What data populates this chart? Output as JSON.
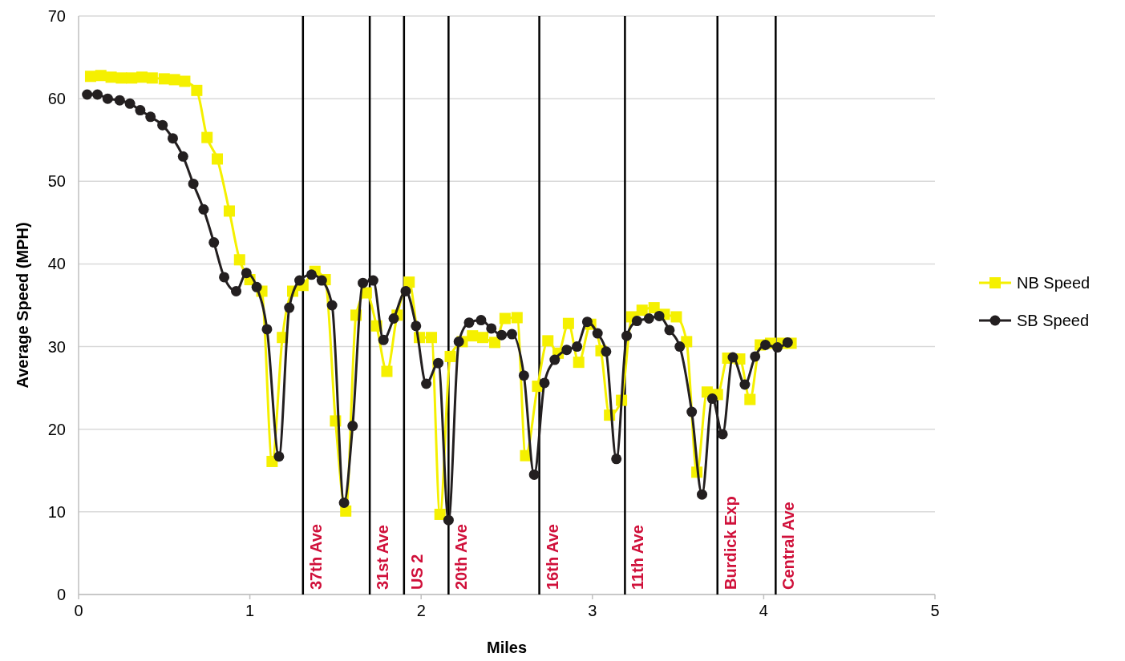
{
  "chart_data": {
    "type": "line",
    "xlabel": "Miles",
    "ylabel": "Average Speed (MPH)",
    "xlim": [
      0,
      5
    ],
    "xticks": [
      0,
      1,
      2,
      3,
      4,
      5
    ],
    "ylim": [
      0,
      70
    ],
    "yticks": [
      0,
      10,
      20,
      30,
      40,
      50,
      60,
      70
    ],
    "grid": "y",
    "legend": "right",
    "series": [
      {
        "name": "NB Speed",
        "color": "#f5f000",
        "marker": "square",
        "x": [
          0.07,
          0.13,
          0.19,
          0.25,
          0.31,
          0.37,
          0.43,
          0.5,
          0.56,
          0.62,
          0.69,
          0.75,
          0.81,
          0.88,
          0.94,
          1.0,
          1.07,
          1.13,
          1.19,
          1.25,
          1.31,
          1.38,
          1.44,
          1.5,
          1.56,
          1.62,
          1.68,
          1.74,
          1.8,
          1.86,
          1.93,
          1.99,
          2.06,
          2.11,
          2.17,
          2.24,
          2.3,
          2.36,
          2.43,
          2.49,
          2.56,
          2.61,
          2.68,
          2.74,
          2.8,
          2.86,
          2.92,
          2.99,
          3.05,
          3.1,
          3.17,
          3.23,
          3.29,
          3.36,
          3.42,
          3.49,
          3.55,
          3.61,
          3.67,
          3.73,
          3.79,
          3.86,
          3.92,
          3.98,
          4.04,
          4.11,
          4.16
        ],
        "values": [
          62.7,
          62.8,
          62.6,
          62.5,
          62.5,
          62.6,
          62.5,
          62.4,
          62.3,
          62.1,
          61,
          55.3,
          52.7,
          46.4,
          40.5,
          38.1,
          36.7,
          16.1,
          31.1,
          36.7,
          37.4,
          39.1,
          38.1,
          21,
          10.1,
          33.8,
          36.5,
          32.5,
          27,
          33.8,
          37.8,
          31.1,
          31.1,
          9.7,
          28.8,
          30.6,
          31.3,
          31.1,
          30.5,
          33.4,
          33.5,
          16.8,
          25.2,
          30.7,
          29.2,
          32.8,
          28.1,
          32.7,
          29.5,
          21.7,
          23.5,
          33.6,
          34.4,
          34.7,
          33.9,
          33.6,
          30.6,
          14.8,
          24.5,
          24.2,
          28.6,
          28.5,
          23.6,
          30.2,
          30.4,
          30.4,
          30.4
        ]
      },
      {
        "name": "SB Speed",
        "color": "#231f20",
        "marker": "circle",
        "x": [
          0.05,
          0.11,
          0.17,
          0.24,
          0.3,
          0.36,
          0.42,
          0.49,
          0.55,
          0.61,
          0.67,
          0.73,
          0.79,
          0.85,
          0.92,
          0.98,
          1.04,
          1.1,
          1.17,
          1.23,
          1.29,
          1.36,
          1.42,
          1.48,
          1.55,
          1.6,
          1.66,
          1.72,
          1.78,
          1.84,
          1.91,
          1.97,
          2.03,
          2.1,
          2.16,
          2.22,
          2.28,
          2.35,
          2.41,
          2.47,
          2.53,
          2.6,
          2.66,
          2.72,
          2.78,
          2.85,
          2.91,
          2.97,
          3.03,
          3.08,
          3.14,
          3.2,
          3.26,
          3.33,
          3.39,
          3.45,
          3.51,
          3.58,
          3.64,
          3.7,
          3.76,
          3.82,
          3.89,
          3.95,
          4.01,
          4.08,
          4.14
        ],
        "values": [
          60.5,
          60.5,
          60,
          59.8,
          59.4,
          58.6,
          57.8,
          56.8,
          55.2,
          53,
          49.7,
          46.6,
          42.6,
          38.4,
          36.7,
          38.9,
          37.2,
          32.1,
          16.7,
          34.7,
          38,
          38.7,
          38,
          35,
          11.1,
          20.4,
          37.7,
          38,
          30.8,
          33.4,
          36.7,
          32.5,
          25.5,
          28,
          9,
          30.6,
          32.9,
          33.2,
          32.2,
          31.4,
          31.5,
          26.5,
          14.5,
          25.6,
          28.4,
          29.6,
          30,
          33,
          31.6,
          29.4,
          16.4,
          31.3,
          33.1,
          33.4,
          33.7,
          32,
          30,
          22.1,
          12.1,
          23.7,
          19.4,
          28.7,
          25.4,
          28.8,
          30.2,
          29.9,
          30.5
        ]
      }
    ],
    "ref_lines": [
      {
        "axis": "x",
        "value": 1.31,
        "label": "37th Ave",
        "color": "#000000"
      },
      {
        "axis": "x",
        "value": 1.7,
        "label": "31st Ave",
        "color": "#000000"
      },
      {
        "axis": "x",
        "value": 1.9,
        "label": "US 2",
        "color": "#000000"
      },
      {
        "axis": "x",
        "value": 2.16,
        "label": "20th Ave",
        "color": "#000000"
      },
      {
        "axis": "x",
        "value": 2.69,
        "label": "16th Ave",
        "color": "#000000"
      },
      {
        "axis": "x",
        "value": 3.19,
        "label": "11th Ave",
        "color": "#000000"
      },
      {
        "axis": "x",
        "value": 3.73,
        "label": "Burdick Exp",
        "color": "#000000"
      },
      {
        "axis": "x",
        "value": 4.07,
        "label": "Central Ave",
        "color": "#000000"
      }
    ]
  }
}
